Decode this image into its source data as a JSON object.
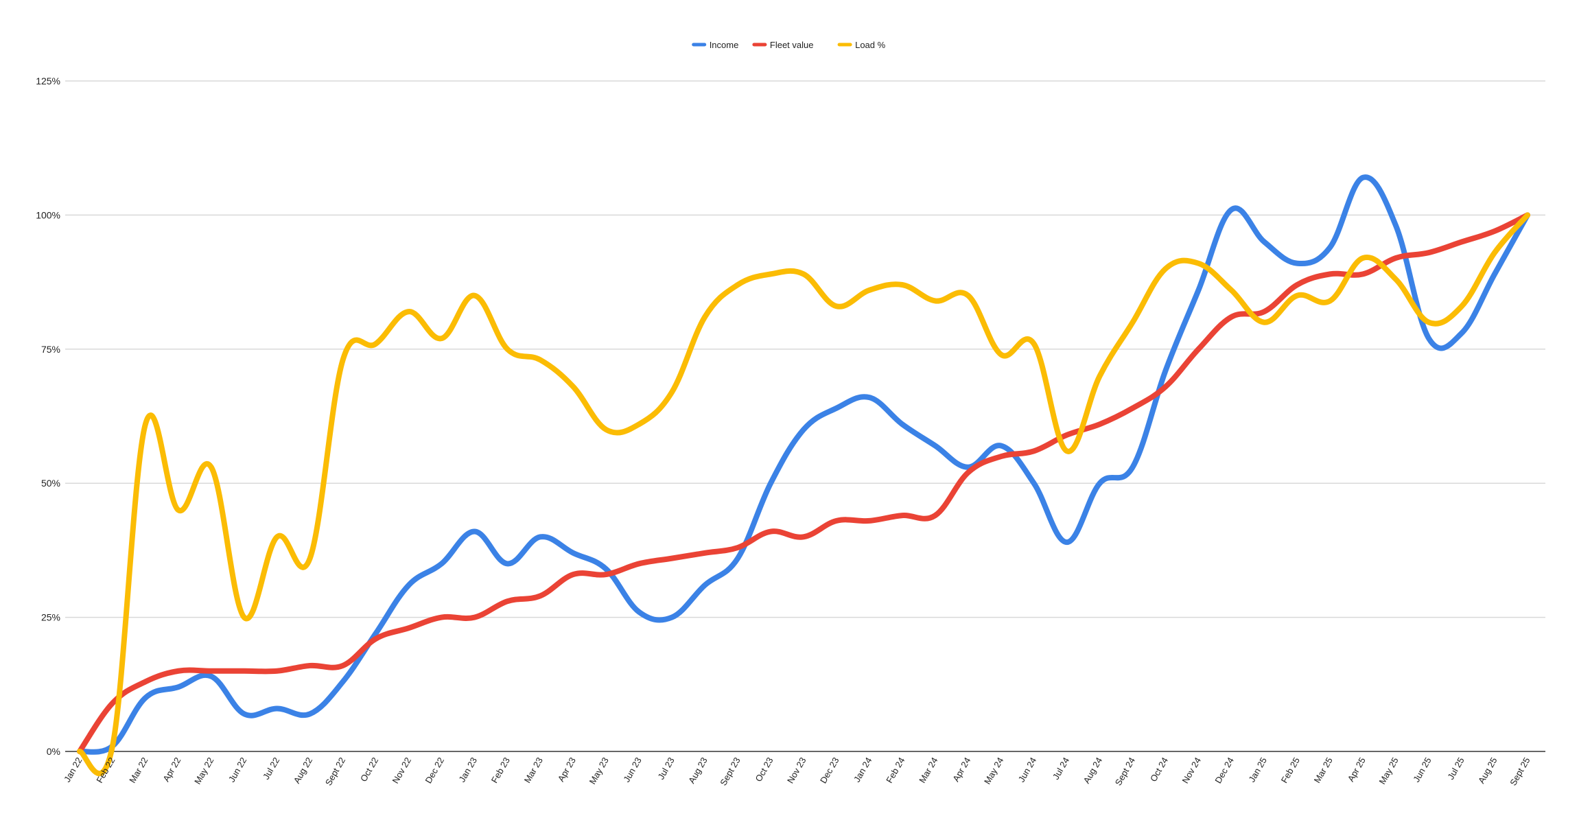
{
  "chart_data": {
    "type": "line",
    "title": "",
    "xlabel": "",
    "ylabel": "",
    "ylim": [
      0,
      125
    ],
    "y_ticks": [
      "0%",
      "25%",
      "50%",
      "75%",
      "100%",
      "125%"
    ],
    "y_tick_values": [
      0,
      25,
      50,
      75,
      100,
      125
    ],
    "grid": true,
    "legend_position": "top-center",
    "categories": [
      "Jan 22",
      "Feb 22",
      "Mar 22",
      "Apr 22",
      "May 22",
      "Jun 22",
      "Jul 22",
      "Aug 22",
      "Sept 22",
      "Oct 22",
      "Nov 22",
      "Dec 22",
      "Jan 23",
      "Feb 23",
      "Mar 23",
      "Apr 23",
      "May 23",
      "Jun 23",
      "Jul 23",
      "Aug 23",
      "Sept 23",
      "Oct 23",
      "Nov 23",
      "Dec 23",
      "Jan 24",
      "Feb 24",
      "Mar 24",
      "Apr 24",
      "May 24",
      "Jun 24",
      "Jul 24",
      "Aug 24",
      "Sept 24",
      "Oct 24",
      "Nov 24",
      "Dec 24",
      "Jan 25",
      "Feb 25",
      "Mar 25",
      "Apr 25",
      "May 25",
      "Jun 25",
      "Jul 25",
      "Aug 25",
      "Sept 25"
    ],
    "series": [
      {
        "name": "Income",
        "color": "#3b82e6",
        "values": [
          0,
          1,
          10,
          12,
          14,
          7,
          8,
          7,
          13,
          22,
          31,
          35,
          41,
          35,
          40,
          37,
          34,
          26,
          25,
          31,
          36,
          50,
          60,
          64,
          66,
          61,
          57,
          53,
          57,
          50,
          39,
          50,
          53,
          71,
          86,
          101,
          95,
          91,
          94,
          107,
          98,
          77,
          78,
          89,
          100
        ]
      },
      {
        "name": "Fleet value",
        "color": "#ea4335",
        "values": [
          0,
          9,
          13,
          15,
          15,
          15,
          15,
          16,
          16,
          21,
          23,
          25,
          25,
          28,
          29,
          33,
          33,
          35,
          36,
          37,
          38,
          41,
          40,
          43,
          43,
          44,
          44,
          52,
          55,
          56,
          59,
          61,
          64,
          68,
          75,
          81,
          82,
          87,
          89,
          89,
          92,
          93,
          95,
          97,
          100
        ]
      },
      {
        "name": "Load %",
        "color": "#fbbc04",
        "values": [
          0,
          1,
          61,
          45,
          53,
          25,
          40,
          36,
          73,
          76,
          82,
          77,
          85,
          75,
          73,
          68,
          60,
          61,
          67,
          81,
          87,
          89,
          89,
          83,
          86,
          87,
          84,
          85,
          74,
          76,
          56,
          70,
          80,
          90,
          91,
          86,
          80,
          85,
          84,
          92,
          88,
          80,
          83,
          93,
          100
        ]
      }
    ]
  }
}
